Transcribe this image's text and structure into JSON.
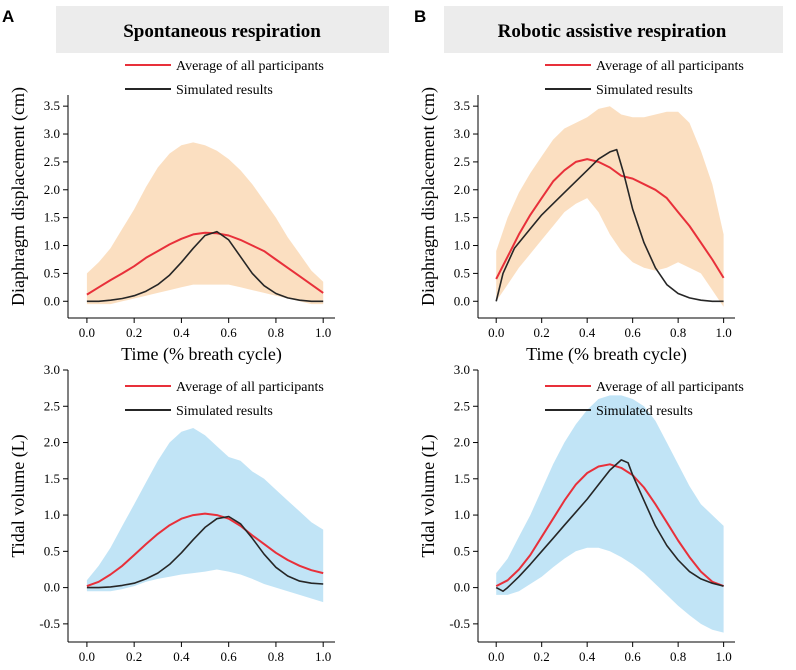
{
  "panels": {
    "A": {
      "letter": "A",
      "title": "Spontaneous respiration"
    },
    "B": {
      "letter": "B",
      "title": "Robotic assistive respiration"
    }
  },
  "colors": {
    "average": "#e8303a",
    "simulated": "#262626",
    "band_orange": "#f8c48e",
    "band_blue": "#8ecdee",
    "title_box": "#ececec"
  },
  "chart_data": [
    {
      "id": "A-top",
      "type": "line",
      "xlabel": "Time (% breath cycle)",
      "ylabel": "Diaphragm displacement (cm)",
      "xlim": [
        -0.08,
        1.05
      ],
      "ylim": [
        -0.3,
        3.7
      ],
      "xticks": [
        "0.0",
        "0.2",
        "0.4",
        "0.6",
        "0.8",
        "1.0"
      ],
      "yticks": [
        "0.0",
        "0.5",
        "1.0",
        "1.5",
        "2.0",
        "2.5",
        "3.0",
        "3.5"
      ],
      "legend": [
        "Average of all participants",
        "Simulated results"
      ],
      "band": {
        "x": [
          0,
          0.05,
          0.1,
          0.15,
          0.2,
          0.25,
          0.3,
          0.35,
          0.4,
          0.45,
          0.5,
          0.55,
          0.6,
          0.65,
          0.7,
          0.75,
          0.8,
          0.85,
          0.9,
          0.95,
          1.0
        ],
        "upper": [
          0.5,
          0.7,
          0.95,
          1.3,
          1.65,
          2.05,
          2.4,
          2.65,
          2.8,
          2.85,
          2.8,
          2.7,
          2.55,
          2.35,
          2.1,
          1.8,
          1.5,
          1.15,
          0.85,
          0.55,
          0.35
        ],
        "lower": [
          -0.05,
          -0.05,
          -0.05,
          0.0,
          0.05,
          0.1,
          0.15,
          0.2,
          0.25,
          0.3,
          0.3,
          0.3,
          0.3,
          0.25,
          0.2,
          0.15,
          0.1,
          0.05,
          0.0,
          -0.05,
          -0.05
        ]
      },
      "series": [
        {
          "name": "Average of all participants",
          "role": "average",
          "x": [
            0,
            0.05,
            0.1,
            0.15,
            0.2,
            0.25,
            0.3,
            0.35,
            0.4,
            0.45,
            0.5,
            0.55,
            0.6,
            0.65,
            0.7,
            0.75,
            0.8,
            0.85,
            0.9,
            0.95,
            1.0
          ],
          "y": [
            0.12,
            0.25,
            0.38,
            0.5,
            0.63,
            0.78,
            0.9,
            1.02,
            1.12,
            1.2,
            1.23,
            1.22,
            1.18,
            1.1,
            1.0,
            0.9,
            0.75,
            0.6,
            0.45,
            0.3,
            0.15
          ]
        },
        {
          "name": "Simulated results",
          "role": "simulated",
          "x": [
            0,
            0.05,
            0.1,
            0.15,
            0.2,
            0.25,
            0.3,
            0.35,
            0.4,
            0.45,
            0.5,
            0.55,
            0.6,
            0.65,
            0.7,
            0.75,
            0.8,
            0.85,
            0.9,
            0.95,
            1.0
          ],
          "y": [
            0,
            0.0,
            0.02,
            0.05,
            0.1,
            0.18,
            0.3,
            0.47,
            0.7,
            0.95,
            1.18,
            1.25,
            1.1,
            0.8,
            0.5,
            0.28,
            0.14,
            0.06,
            0.02,
            0.0,
            0.0
          ]
        }
      ]
    },
    {
      "id": "B-top",
      "type": "line",
      "xlabel": "Time (% breath cycle)",
      "ylabel": "Diaphragm displacement (cm)",
      "xlim": [
        -0.08,
        1.05
      ],
      "ylim": [
        -0.3,
        3.7
      ],
      "xticks": [
        "0.0",
        "0.2",
        "0.4",
        "0.6",
        "0.8",
        "1.0"
      ],
      "yticks": [
        "0.0",
        "0.5",
        "1.0",
        "1.5",
        "2.0",
        "2.5",
        "3.0",
        "3.5"
      ],
      "legend": [
        "Average of all participants",
        "Simulated results"
      ],
      "band": {
        "x": [
          0,
          0.05,
          0.1,
          0.15,
          0.2,
          0.25,
          0.3,
          0.35,
          0.4,
          0.45,
          0.5,
          0.55,
          0.6,
          0.65,
          0.7,
          0.75,
          0.8,
          0.85,
          0.9,
          0.95,
          1.0
        ],
        "upper": [
          0.9,
          1.5,
          1.95,
          2.3,
          2.6,
          2.9,
          3.1,
          3.2,
          3.3,
          3.45,
          3.5,
          3.35,
          3.3,
          3.3,
          3.35,
          3.4,
          3.4,
          3.2,
          2.7,
          2.1,
          1.2
        ],
        "lower": [
          0.0,
          0.3,
          0.6,
          0.85,
          1.1,
          1.35,
          1.6,
          1.75,
          1.85,
          1.6,
          1.2,
          0.9,
          0.7,
          0.6,
          0.55,
          0.6,
          0.7,
          0.6,
          0.5,
          0.2,
          -0.1
        ]
      },
      "series": [
        {
          "name": "Average of all participants",
          "role": "average",
          "x": [
            0,
            0.05,
            0.1,
            0.15,
            0.2,
            0.25,
            0.3,
            0.35,
            0.4,
            0.45,
            0.5,
            0.55,
            0.6,
            0.65,
            0.7,
            0.75,
            0.8,
            0.85,
            0.9,
            0.95,
            1.0
          ],
          "y": [
            0.4,
            0.8,
            1.2,
            1.55,
            1.85,
            2.15,
            2.35,
            2.5,
            2.55,
            2.5,
            2.4,
            2.25,
            2.2,
            2.1,
            2.0,
            1.85,
            1.6,
            1.35,
            1.05,
            0.75,
            0.42
          ]
        },
        {
          "name": "Simulated results",
          "role": "simulated",
          "x": [
            0,
            0.03,
            0.08,
            0.15,
            0.2,
            0.25,
            0.3,
            0.35,
            0.4,
            0.45,
            0.5,
            0.53,
            0.56,
            0.6,
            0.65,
            0.7,
            0.75,
            0.8,
            0.85,
            0.9,
            0.95,
            1.0
          ],
          "y": [
            0,
            0.5,
            0.95,
            1.3,
            1.55,
            1.75,
            1.95,
            2.15,
            2.35,
            2.55,
            2.68,
            2.72,
            2.3,
            1.65,
            1.05,
            0.6,
            0.3,
            0.14,
            0.06,
            0.02,
            0.0,
            0.0
          ]
        }
      ]
    },
    {
      "id": "A-bottom",
      "type": "line",
      "xlabel": "Time (% breath cycle)",
      "ylabel": "Tidal volume (L)",
      "xlim": [
        -0.08,
        1.05
      ],
      "ylim": [
        -0.75,
        3.0
      ],
      "xticks": [
        "0.0",
        "0.2",
        "0.4",
        "0.6",
        "0.8",
        "1.0"
      ],
      "yticks": [
        "-0.5",
        "0.0",
        "0.5",
        "1.0",
        "1.5",
        "2.0",
        "2.5",
        "3.0"
      ],
      "legend": [
        "Average of all participants",
        "Simulated results"
      ],
      "band": {
        "x": [
          0,
          0.05,
          0.1,
          0.15,
          0.2,
          0.25,
          0.3,
          0.35,
          0.4,
          0.45,
          0.5,
          0.55,
          0.6,
          0.65,
          0.7,
          0.75,
          0.8,
          0.85,
          0.9,
          0.95,
          1.0
        ],
        "upper": [
          0.1,
          0.3,
          0.55,
          0.85,
          1.15,
          1.45,
          1.75,
          2.0,
          2.15,
          2.2,
          2.1,
          1.95,
          1.8,
          1.75,
          1.6,
          1.5,
          1.35,
          1.2,
          1.05,
          0.9,
          0.8
        ],
        "lower": [
          -0.05,
          -0.05,
          -0.05,
          -0.02,
          0.02,
          0.08,
          0.12,
          0.15,
          0.18,
          0.2,
          0.22,
          0.25,
          0.22,
          0.18,
          0.12,
          0.05,
          0.0,
          -0.05,
          -0.1,
          -0.15,
          -0.2
        ]
      },
      "series": [
        {
          "name": "Average of all participants",
          "role": "average",
          "x": [
            0,
            0.05,
            0.1,
            0.15,
            0.2,
            0.25,
            0.3,
            0.35,
            0.4,
            0.45,
            0.5,
            0.55,
            0.6,
            0.65,
            0.7,
            0.75,
            0.8,
            0.85,
            0.9,
            0.95,
            1.0
          ],
          "y": [
            0.02,
            0.08,
            0.18,
            0.3,
            0.45,
            0.6,
            0.74,
            0.86,
            0.95,
            1.0,
            1.02,
            1.0,
            0.95,
            0.85,
            0.72,
            0.6,
            0.48,
            0.38,
            0.3,
            0.24,
            0.2
          ]
        },
        {
          "name": "Simulated results",
          "role": "simulated",
          "x": [
            0,
            0.05,
            0.1,
            0.15,
            0.2,
            0.25,
            0.3,
            0.35,
            0.4,
            0.45,
            0.5,
            0.55,
            0.6,
            0.65,
            0.7,
            0.75,
            0.8,
            0.85,
            0.9,
            0.95,
            1.0
          ],
          "y": [
            0,
            0.0,
            0.01,
            0.03,
            0.06,
            0.12,
            0.2,
            0.32,
            0.48,
            0.66,
            0.83,
            0.95,
            0.98,
            0.88,
            0.68,
            0.46,
            0.28,
            0.16,
            0.09,
            0.06,
            0.05
          ]
        }
      ]
    },
    {
      "id": "B-bottom",
      "type": "line",
      "xlabel": "Time (% breath cycle)",
      "ylabel": "Tidal volume (L)",
      "xlim": [
        -0.08,
        1.05
      ],
      "ylim": [
        -0.75,
        3.0
      ],
      "xticks": [
        "0.0",
        "0.2",
        "0.4",
        "0.6",
        "0.8",
        "1.0"
      ],
      "yticks": [
        "-0.5",
        "0.0",
        "0.5",
        "1.0",
        "1.5",
        "2.0",
        "2.5",
        "3.0"
      ],
      "legend": [
        "Average of all participants",
        "Simulated results"
      ],
      "band": {
        "x": [
          0,
          0.05,
          0.1,
          0.15,
          0.2,
          0.25,
          0.3,
          0.35,
          0.4,
          0.45,
          0.5,
          0.55,
          0.6,
          0.65,
          0.7,
          0.75,
          0.8,
          0.85,
          0.9,
          0.95,
          1.0
        ],
        "upper": [
          0.2,
          0.4,
          0.7,
          1.0,
          1.35,
          1.7,
          2.0,
          2.25,
          2.45,
          2.6,
          2.65,
          2.65,
          2.6,
          2.5,
          2.3,
          2.0,
          1.7,
          1.4,
          1.15,
          1.0,
          0.85
        ],
        "lower": [
          -0.1,
          -0.1,
          -0.05,
          0.05,
          0.15,
          0.28,
          0.4,
          0.5,
          0.55,
          0.55,
          0.5,
          0.42,
          0.32,
          0.2,
          0.05,
          -0.1,
          -0.25,
          -0.38,
          -0.5,
          -0.58,
          -0.62
        ]
      },
      "series": [
        {
          "name": "Average of all participants",
          "role": "average",
          "x": [
            0,
            0.05,
            0.1,
            0.15,
            0.2,
            0.25,
            0.3,
            0.35,
            0.4,
            0.45,
            0.5,
            0.55,
            0.6,
            0.65,
            0.7,
            0.75,
            0.8,
            0.85,
            0.9,
            0.95,
            1.0
          ],
          "y": [
            0.02,
            0.1,
            0.25,
            0.45,
            0.7,
            0.95,
            1.2,
            1.42,
            1.58,
            1.67,
            1.7,
            1.65,
            1.55,
            1.38,
            1.15,
            0.9,
            0.65,
            0.42,
            0.22,
            0.08,
            0.02
          ]
        },
        {
          "name": "Simulated results",
          "role": "simulated",
          "x": [
            0,
            0.03,
            0.05,
            0.1,
            0.15,
            0.2,
            0.25,
            0.3,
            0.35,
            0.4,
            0.45,
            0.5,
            0.55,
            0.58,
            0.6,
            0.65,
            0.7,
            0.75,
            0.8,
            0.85,
            0.9,
            0.95,
            1.0
          ],
          "y": [
            0,
            -0.05,
            0.0,
            0.15,
            0.32,
            0.5,
            0.68,
            0.86,
            1.04,
            1.22,
            1.42,
            1.62,
            1.76,
            1.72,
            1.55,
            1.2,
            0.85,
            0.58,
            0.38,
            0.22,
            0.12,
            0.06,
            0.02
          ]
        }
      ]
    }
  ]
}
